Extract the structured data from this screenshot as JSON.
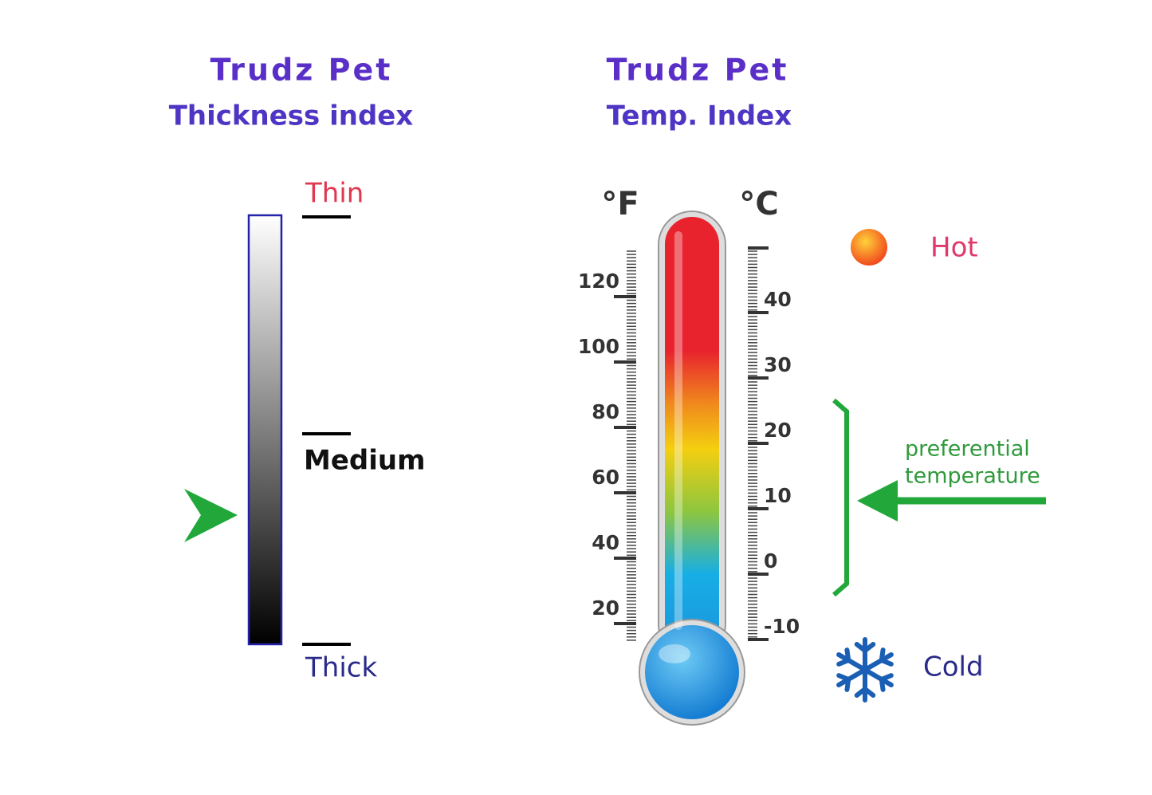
{
  "left": {
    "title": "Trudz Pet",
    "subtitle": "Thickness index",
    "levels": [
      "Thin",
      "Medium",
      "Thick"
    ]
  },
  "right": {
    "title": "Trudz Pet",
    "subtitle": "Temp. Index",
    "fahrenheit": {
      "unit": "°F",
      "ticks": [
        120,
        100,
        80,
        60,
        40,
        20
      ]
    },
    "celsius": {
      "unit": "°C",
      "ticks": [
        40,
        30,
        20,
        10,
        0,
        -10
      ]
    },
    "hot": "Hot",
    "cold": "Cold",
    "note": [
      "preferential",
      "temperature"
    ]
  }
}
